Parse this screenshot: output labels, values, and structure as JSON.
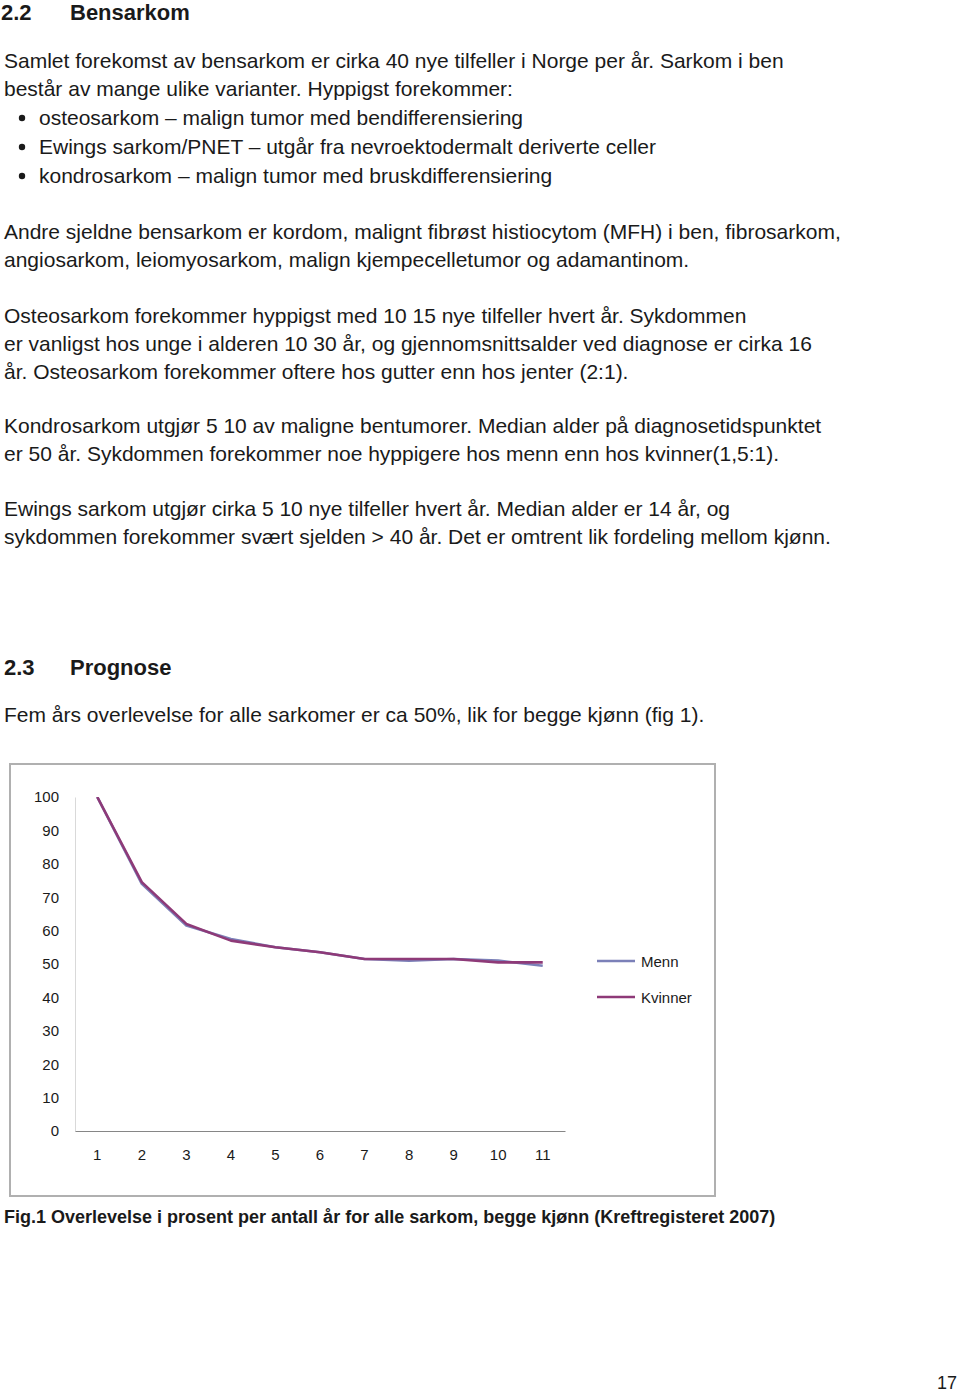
{
  "document": {
    "heading_1": {
      "number": "2.2",
      "title": "Bensarkom"
    },
    "intro_lines": [
      "Samlet forekomst av bensarkom er cirka 40 nye tilfeller i Norge per år. Sarkom i ben",
      "består av mange ulike varianter. Hyppigst forekommer:"
    ],
    "bullets": [
      "osteosarkom – malign tumor med bendifferensiering",
      "Ewings sarkom/PNET – utgår fra nevroektodermalt deriverte celler",
      "kondrosarkom – malign tumor med bruskdifferensiering"
    ],
    "paragraphs": [
      [
        "Andre sjeldne bensarkom er kordom, malignt fibrøst histiocytom (MFH) i ben, fibrosarkom,",
        "angiosarkom, leiomyosarkom, malign kjempecelletumor og adamantinom."
      ],
      [
        "Osteosarkom forekommer hyppigst med 10 15 nye tilfeller hvert år. Sykdommen",
        "er vanligst hos unge i alderen 10 30 år, og gjennomsnittsalder ved diagnose er cirka 16",
        "år. Osteosarkom forekommer oftere hos gutter enn hos jenter (2:1)."
      ],
      [
        "Kondrosarkom utgjør 5 10 av maligne bentumorer. Median alder på diagnosetidspunktet",
        "er 50 år. Sykdommen forekommer noe hyppigere hos menn enn hos kvinner(1,5:1)."
      ],
      [
        "Ewings sarkom utgjør cirka 5 10 nye tilfeller hvert år. Median alder er 14 år, og",
        "sykdommen forekommer svært sjelden > 40 år. Det er omtrent lik fordeling mellom kjønn."
      ]
    ],
    "heading_2": {
      "number": "2.3",
      "title": "Prognose"
    },
    "prognosis_text": "Fem års overlevelse for alle sarkomer er ca 50%, lik for begge kjønn (fig 1).",
    "page_number": "17"
  },
  "chart_data": {
    "type": "line",
    "title": "Fig.1 Overlevelse i prosent per antall år for alle sarkom, begge kjønn (Kreftregisteret 2007)",
    "categories": [
      "1",
      "2",
      "3",
      "4",
      "5",
      "6",
      "7",
      "8",
      "9",
      "10",
      "11"
    ],
    "series": [
      {
        "name": "Menn",
        "color": "#7b80b8",
        "values": [
          100,
          74,
          61.5,
          57.5,
          55,
          53.5,
          51.5,
          51,
          51.5,
          51,
          49.5
        ]
      },
      {
        "name": "Kvinner",
        "color": "#8e3a78",
        "values": [
          100,
          74.5,
          62,
          57,
          55,
          53.5,
          51.5,
          51.5,
          51.5,
          50.5,
          50.5
        ]
      }
    ],
    "ylim": [
      0,
      100
    ],
    "yticks": [
      0,
      10,
      20,
      30,
      40,
      50,
      60,
      70,
      80,
      90,
      100
    ],
    "grid": false,
    "legend": "right"
  }
}
